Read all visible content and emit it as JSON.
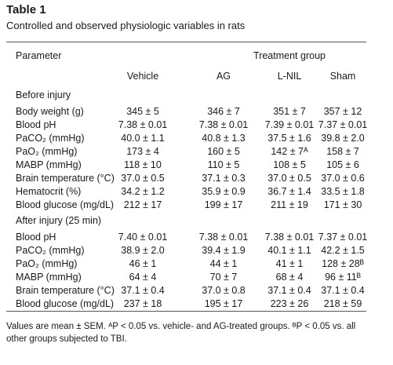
{
  "table": {
    "title": "Table 1",
    "subtitle": "Controlled and observed physiologic variables in rats",
    "parameter_header": "Parameter",
    "group_header": "Treatment group",
    "columns": [
      "Vehicle",
      "AG",
      "L-NIL",
      "Sham"
    ],
    "sections": [
      {
        "label": "Before injury",
        "rows": [
          {
            "label": "Body weight (g)",
            "values": [
              "345 ± 5",
              "346 ± 7",
              "351 ± 7",
              "357 ± 12"
            ]
          },
          {
            "label": "Blood pH",
            "values": [
              "7.38 ± 0.01",
              "7.38 ± 0.01",
              "7.39 ± 0.01",
              "7.37 ± 0.01"
            ]
          },
          {
            "label": "PaCO₂ (mmHg)",
            "values": [
              "40.0 ± 1.1",
              "40.8 ± 1.3",
              "37.5 ± 1.6",
              "39.8 ± 2.0"
            ]
          },
          {
            "label": "PaO₂ (mmHg)",
            "values": [
              "173 ± 4",
              "160 ± 5",
              "142 ± 7ᴬ",
              "158 ± 7"
            ]
          },
          {
            "label": "MABP (mmHg)",
            "values": [
              "118 ± 10",
              "110 ± 5",
              "108 ± 5",
              "105 ± 6"
            ]
          },
          {
            "label": "Brain temperature (°C)",
            "values": [
              "37.0 ± 0.5",
              "37.1 ± 0.3",
              "37.0 ± 0.5",
              "37.0 ± 0.6"
            ]
          },
          {
            "label": "Hematocrit (%)",
            "values": [
              "34.2 ± 1.2",
              "35.9 ± 0.9",
              "36.7 ± 1.4",
              "33.5 ± 1.8"
            ]
          },
          {
            "label": "Blood glucose (mg/dL)",
            "values": [
              "212 ± 17",
              "199 ± 17",
              "211 ± 19",
              "171 ± 30"
            ]
          }
        ]
      },
      {
        "label": "After injury (25 min)",
        "rows": [
          {
            "label": "Blood pH",
            "values": [
              "7.40 ± 0.01",
              "7.38 ± 0.01",
              "7.38 ± 0.01",
              "7.37 ± 0.01"
            ]
          },
          {
            "label": "PaCO₂ (mmHg)",
            "values": [
              "38.9 ± 2.0",
              "39.4 ± 1.9",
              "40.1 ± 1.1",
              "42.2 ± 1.5"
            ]
          },
          {
            "label": "PaO₂ (mmHg)",
            "values": [
              "46 ± 1",
              "44 ± 1",
              "41 ± 1",
              "128 ± 28ᴮ"
            ]
          },
          {
            "label": "MABP (mmHg)",
            "values": [
              "64 ± 4",
              "70 ± 7",
              "68 ± 4",
              "96 ± 11ᴮ"
            ]
          },
          {
            "label": "Brain temperature (°C)",
            "values": [
              "37.1 ± 0.4",
              "37.0 ± 0.8",
              "37.1 ± 0.4",
              "37.1 ± 0.4"
            ]
          },
          {
            "label": "Blood glucose (mg/dL)",
            "values": [
              "237 ± 18",
              "195 ± 17",
              "223 ± 26",
              "218 ± 59"
            ]
          }
        ]
      }
    ],
    "footnote": "Values are mean ± SEM. ᴬP < 0.05 vs. vehicle- and AG-treated groups. ᴮP < 0.05 vs. all other groups subjected to TBI."
  }
}
